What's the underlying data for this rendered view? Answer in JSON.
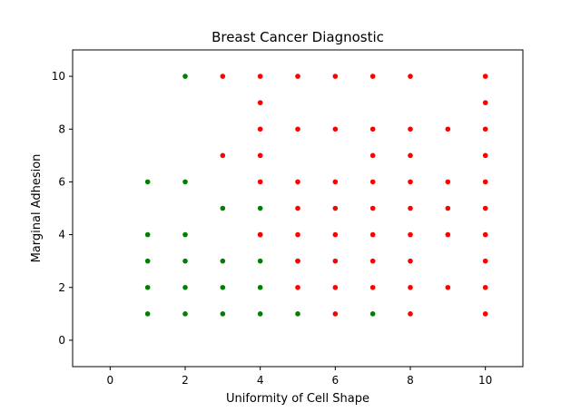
{
  "chart_data": {
    "type": "scatter",
    "title": "Breast Cancer Diagnostic",
    "xlabel": "Uniformity of Cell Shape",
    "ylabel": "Marginal Adhesion",
    "xlim": [
      -1,
      11
    ],
    "ylim": [
      -1,
      11
    ],
    "xticks": [
      0,
      2,
      4,
      6,
      8,
      10
    ],
    "yticks": [
      0,
      2,
      4,
      6,
      8,
      10
    ],
    "grid": false,
    "series": [
      {
        "color": "#008000",
        "points": [
          [
            1,
            1
          ],
          [
            1,
            2
          ],
          [
            1,
            3
          ],
          [
            1,
            4
          ],
          [
            1,
            6
          ],
          [
            2,
            1
          ],
          [
            2,
            2
          ],
          [
            2,
            3
          ],
          [
            2,
            4
          ],
          [
            2,
            6
          ],
          [
            2,
            10
          ],
          [
            3,
            1
          ],
          [
            3,
            2
          ],
          [
            3,
            3
          ],
          [
            3,
            5
          ],
          [
            4,
            1
          ],
          [
            4,
            2
          ],
          [
            4,
            3
          ],
          [
            4,
            4
          ],
          [
            4,
            5
          ],
          [
            5,
            1
          ],
          [
            5,
            3
          ],
          [
            7,
            1
          ]
        ]
      },
      {
        "color": "#ff0000",
        "points": [
          [
            3,
            7
          ],
          [
            3,
            10
          ],
          [
            4,
            4
          ],
          [
            4,
            6
          ],
          [
            4,
            7
          ],
          [
            4,
            8
          ],
          [
            4,
            9
          ],
          [
            4,
            10
          ],
          [
            5,
            2
          ],
          [
            5,
            3
          ],
          [
            5,
            4
          ],
          [
            5,
            5
          ],
          [
            5,
            6
          ],
          [
            5,
            8
          ],
          [
            5,
            10
          ],
          [
            6,
            1
          ],
          [
            6,
            2
          ],
          [
            6,
            3
          ],
          [
            6,
            4
          ],
          [
            6,
            5
          ],
          [
            6,
            6
          ],
          [
            6,
            8
          ],
          [
            6,
            10
          ],
          [
            7,
            2
          ],
          [
            7,
            3
          ],
          [
            7,
            4
          ],
          [
            7,
            5
          ],
          [
            7,
            6
          ],
          [
            7,
            7
          ],
          [
            7,
            8
          ],
          [
            7,
            10
          ],
          [
            8,
            1
          ],
          [
            8,
            2
          ],
          [
            8,
            3
          ],
          [
            8,
            4
          ],
          [
            8,
            5
          ],
          [
            8,
            6
          ],
          [
            8,
            7
          ],
          [
            8,
            8
          ],
          [
            8,
            10
          ],
          [
            9,
            2
          ],
          [
            9,
            4
          ],
          [
            9,
            5
          ],
          [
            9,
            6
          ],
          [
            9,
            8
          ],
          [
            10,
            1
          ],
          [
            10,
            2
          ],
          [
            10,
            3
          ],
          [
            10,
            4
          ],
          [
            10,
            5
          ],
          [
            10,
            6
          ],
          [
            10,
            7
          ],
          [
            10,
            8
          ],
          [
            10,
            9
          ],
          [
            10,
            10
          ]
        ]
      }
    ]
  }
}
